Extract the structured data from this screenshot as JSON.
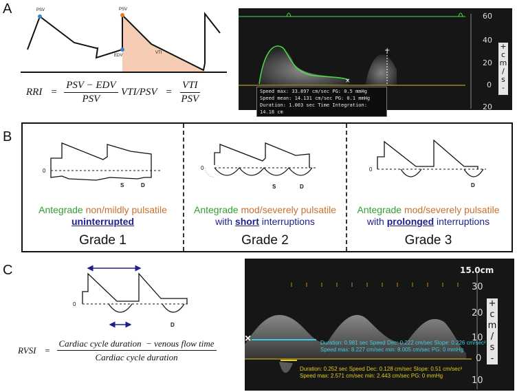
{
  "panel_a": {
    "letter": "A",
    "diagram_labels": {
      "psv_left": "PSV",
      "psv_right": "PSV",
      "edv": "EDV",
      "vti": "VTI"
    },
    "formula_rri": {
      "lhs": "RRI",
      "numerator": "PSV − EDV",
      "denominator": "PSV"
    },
    "formula_vti": {
      "lhs": "VTI/PSV",
      "numerator": "VTI",
      "denominator": "PSV"
    },
    "doppler": {
      "scale_ticks": [
        "60",
        "40",
        "20",
        "0",
        "20"
      ],
      "unit": [
        "+",
        "c",
        "m",
        "/",
        "s",
        "-"
      ],
      "readout": [
        "Speed max: 33.897 cm/sec PG: 0.5 mmHg",
        "Speed mean: 14.131 cm/sec PG: 0.1 mmHg",
        "Duration: 1.003 sec Time Integration: 14.18 cm"
      ]
    }
  },
  "panel_b": {
    "letter": "B",
    "grades": [
      {
        "zero": "0",
        "marks": [
          "S",
          "D"
        ],
        "line1": [
          {
            "text": "Antegrade",
            "color": "green"
          },
          {
            "text": " non/mildly pulsatile",
            "color": "orange"
          }
        ],
        "line2": [
          {
            "text": "uninterrupted",
            "color": "navy",
            "bold": true,
            "underline": true
          }
        ],
        "title": "Grade 1"
      },
      {
        "zero": "0",
        "marks": [
          "S",
          "D"
        ],
        "line1": [
          {
            "text": "Antegrade",
            "color": "green"
          },
          {
            "text": " mod/severely pulsatile",
            "color": "orange"
          }
        ],
        "line2": [
          {
            "text": "with ",
            "color": "navy"
          },
          {
            "text": "short",
            "color": "navy",
            "bold": true,
            "underline": true
          },
          {
            "text": " interruptions",
            "color": "navy"
          }
        ],
        "title": "Grade 2"
      },
      {
        "zero": "0",
        "marks": [
          "D"
        ],
        "line1": [
          {
            "text": "Antegrade",
            "color": "green"
          },
          {
            "text": " mod/severely pulsatile",
            "color": "orange"
          }
        ],
        "line2": [
          {
            "text": "with ",
            "color": "navy"
          },
          {
            "text": "prolonged",
            "color": "navy",
            "bold": true,
            "underline": true
          },
          {
            "text": " interruptions",
            "color": "navy"
          }
        ],
        "title": "Grade 3"
      }
    ]
  },
  "panel_c": {
    "letter": "C",
    "zero": "0",
    "mark_d": "D",
    "formula": {
      "lhs": "RVSI",
      "numerator": "Cardiac cycle duration  − venous flow time",
      "denominator": "Cardiac cycle duration"
    },
    "doppler": {
      "depth": "15.0cm",
      "scale_ticks": [
        "30",
        "20",
        "10",
        "0",
        "10"
      ],
      "unit": [
        "+",
        "c",
        "m",
        "/",
        "s",
        "-"
      ],
      "cursor_mark": "×",
      "cyan_readout": [
        "Duration: 0.981 sec Speed Dec: 0.222 cm/sec Slope: 0.226 cm/sec²",
        "Speed max: 8.227 cm/sec min: 8.005 cm/sec PG: 0 mmHg"
      ],
      "yellow_readout": [
        "Duration: 0.252 sec Speed Dec: 0.128 cm/sec Slope: 0.51 cm/sec²",
        "Speed max: 2.571 cm/sec min: 2.443 cm/sec PG: 0 mmHg"
      ]
    }
  },
  "colors": {
    "green": "#2fa02f",
    "orange": "#c8702c",
    "navy": "#1f1f8a",
    "vti_fill": "#f6cdb4",
    "trace_green": "#48e048",
    "cyan": "#39d0e6",
    "yellow": "#e8cf1a"
  }
}
